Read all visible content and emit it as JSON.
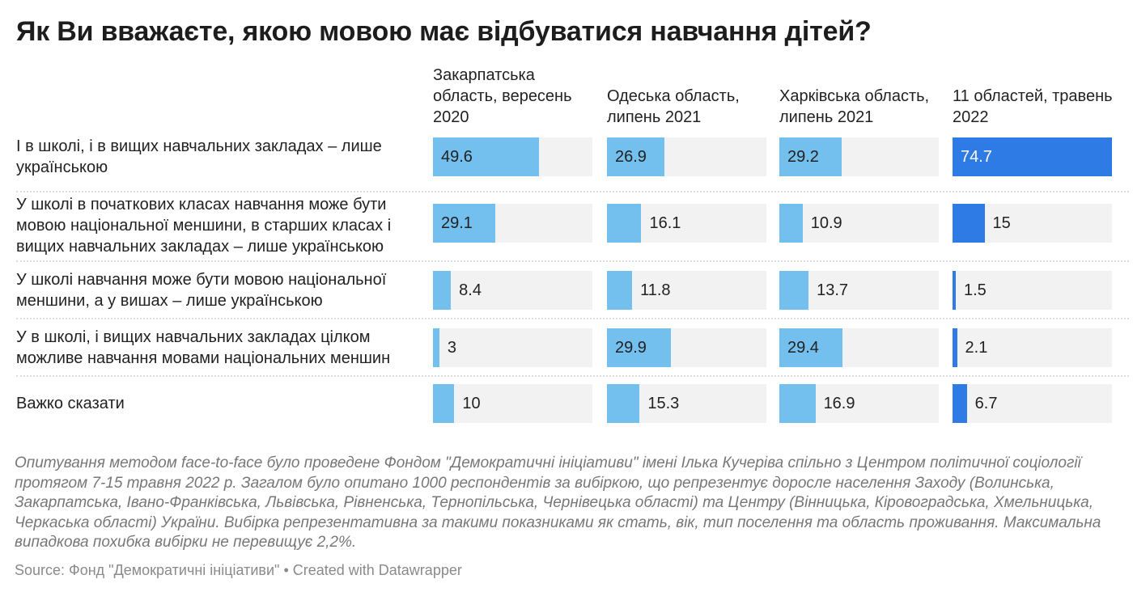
{
  "chart_data": {
    "type": "bar",
    "title": "Як Ви вважаєте, якою мовою має відбуватися навчання дітей?",
    "columns": [
      "Закарпатська область, вересень 2020",
      "Одеська область, липень 2021",
      "Харківська область, липень 2021",
      "11 областей, травень 2022"
    ],
    "categories": [
      "І в школі, і в вищих навчальних закладах – лише українською",
      "У школі в початкових класах навчання може бути мовою національної меншини, в старших класах і вищих навчальних закладах – лише українською",
      "У школі навчання може бути мовою національної меншини, а у вишах – лише українською",
      "У в школі, і вищих навчальних закладах цілком можливе навчання мовами національних меншин",
      "Важко сказати"
    ],
    "series": [
      {
        "name": "Закарпатська область, вересень 2020",
        "values": [
          49.6,
          29.1,
          8.4,
          3,
          10
        ],
        "color": "#73bfed"
      },
      {
        "name": "Одеська область, липень 2021",
        "values": [
          26.9,
          16.1,
          11.8,
          29.9,
          15.3
        ],
        "color": "#73bfed"
      },
      {
        "name": "Харківська область, липень 2021",
        "values": [
          29.2,
          10.9,
          13.7,
          29.4,
          16.9
        ],
        "color": "#73bfed"
      },
      {
        "name": "11 областей, травень 2022",
        "values": [
          74.7,
          15,
          1.5,
          2.1,
          6.7
        ],
        "color": "#2f7be5"
      }
    ],
    "xlim": [
      0,
      74.7
    ],
    "track_color": "#f2f2f2"
  },
  "notes": "Опитування методом face-to-face було проведене Фондом \"Демократичні ініціативи\" імені Ілька Кучеріва спільно з Центром політичної соціології протягом 7-15 травня 2022 р. Загалом було опитано 1000 респондентів за вибіркою, що репрезентує доросле населення Заходу (Волинська, Закарпатська, Івано-Франківська, Львівська, Рівненська, Тернопільська, Чернівецька області) та Центру (Вінницька, Кіровоградська, Хмельницька, Черкаська області) України. Вибірка репрезентативна за такими показниками як стать, вік, тип поселення та область проживання. Максимальна випадкова похибка вибірки не перевищує 2,2%.",
  "source": "Source: Фонд \"Демократичні ініціативи\" • Created with Datawrapper"
}
